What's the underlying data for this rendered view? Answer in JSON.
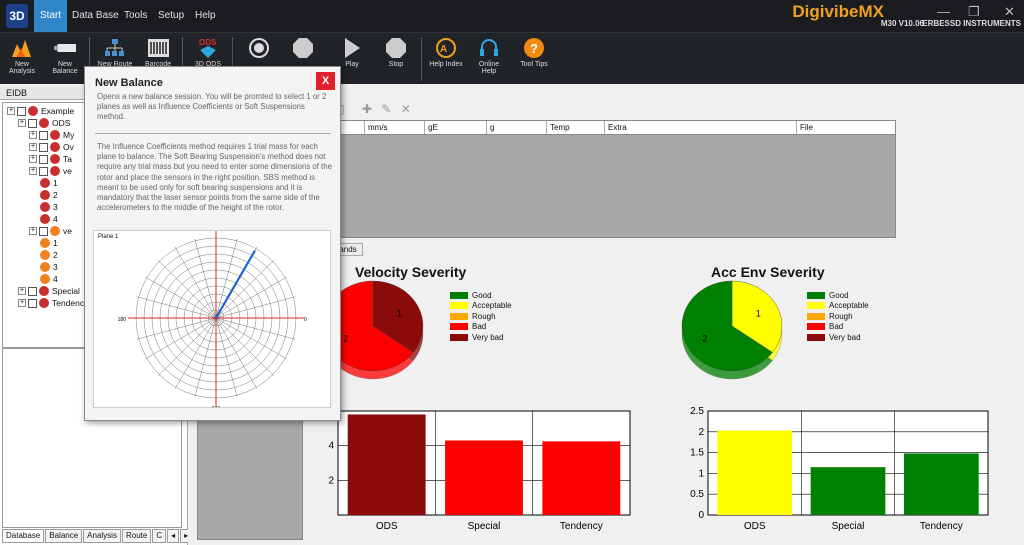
{
  "menu": {
    "logo": "3D",
    "items": [
      "Start",
      "Data Base",
      "Tools",
      "Setup",
      "Help"
    ],
    "brand": "DigivibeMX",
    "version": "M30 V10.06",
    "company": "ERBESSD INSTRUMENTS"
  },
  "ribbon": {
    "buttons": [
      {
        "label": "New\nAnalysis",
        "icon": "analysis-icon"
      },
      {
        "label": "New\nBalance",
        "icon": "balance-icon"
      },
      {
        "label": "New Route",
        "icon": "route-icon"
      },
      {
        "label": "Barcode",
        "icon": "barcode-icon"
      },
      {
        "label": "3D ODS",
        "icon": "ods-icon"
      },
      {
        "label": "",
        "icon": "target-icon"
      },
      {
        "label": "",
        "icon": "stop-shape-icon"
      },
      {
        "label": "Play",
        "icon": "play-icon"
      },
      {
        "label": "Stop",
        "icon": "stop-icon"
      },
      {
        "label": "Help Index",
        "icon": "help-index-icon"
      },
      {
        "label": "Online\nHelp",
        "icon": "headset-icon"
      },
      {
        "label": "Tool Tips",
        "icon": "question-icon"
      }
    ]
  },
  "left": {
    "header": "EIDB",
    "tree": [
      {
        "label": "Example",
        "level": 0
      },
      {
        "label": "ODS",
        "level": 1
      },
      {
        "label": "My",
        "level": 2
      },
      {
        "label": "Ov",
        "level": 2
      },
      {
        "label": "Ta",
        "level": 2
      },
      {
        "label": "ve",
        "level": 2
      },
      {
        "label": "1",
        "level": 3
      },
      {
        "label": "2",
        "level": 3
      },
      {
        "label": "3",
        "level": 3
      },
      {
        "label": "4",
        "level": 3
      },
      {
        "label": "ve",
        "level": 2
      },
      {
        "label": "1",
        "level": 3
      },
      {
        "label": "2",
        "level": 3
      },
      {
        "label": "3",
        "level": 3
      },
      {
        "label": "4",
        "level": 3
      },
      {
        "label": "Special",
        "level": 1
      },
      {
        "label": "Tendency",
        "level": 1
      }
    ],
    "tabs": [
      "Database",
      "Balance",
      "Analysis",
      "Route",
      "C"
    ]
  },
  "table": {
    "headers": [
      "mm/s",
      "gE",
      "g",
      "Temp",
      "Extra",
      "File"
    ]
  },
  "tab_label": "ands",
  "dialog": {
    "title": "New Balance",
    "close": "X",
    "para1": "Opens a new balance session. You will be promted to select 1 or 2 planes as well as Influence Coefficients or Soft Suspensions method.",
    "para2": "The Influence Coefficients method requires 1 trial mass for each plane to balance. The Soft Bearing Suspension's method does not require any trial mass but you need to enter some dimensions of the rotor and place the sensors in the right position. SBS method is meant to be used only for soft bearing suspensions and it is mandatory that the laser sensor points from the same side of the accelerometers to the middle of the height of the rotor.",
    "polar": {
      "title": "Plane 1",
      "angles": [
        "90",
        "0",
        "270",
        "180"
      ],
      "vectors": [
        {
          "angle_deg": 60,
          "magnitude": 0.95,
          "color": "#2060d0"
        }
      ]
    }
  },
  "velocity": {
    "title": "Velocity Severity",
    "pie": [
      {
        "label": "1",
        "fraction": 0.35,
        "color": "#8b0a0a"
      },
      {
        "label": "2",
        "fraction": 0.65,
        "color": "#ff0000"
      }
    ],
    "bars": {
      "categories": [
        "ODS",
        "Special",
        "Tendency"
      ],
      "values": [
        5.8,
        4.3,
        4.25
      ],
      "colors": [
        "#8b0a0a",
        "#ff0000",
        "#ff0000"
      ],
      "ylim": [
        0,
        6
      ],
      "ticks": [
        "2",
        "4"
      ]
    }
  },
  "acc": {
    "title": "Acc Env Severity",
    "pie": [
      {
        "label": "1",
        "fraction": 0.35,
        "color": "#ffff00"
      },
      {
        "label": "2",
        "fraction": 0.65,
        "color": "#008000"
      }
    ],
    "bars": {
      "categories": [
        "ODS",
        "Special",
        "Tendency"
      ],
      "values": [
        2.03,
        1.15,
        1.48
      ],
      "colors": [
        "#ffff00",
        "#008000",
        "#008000"
      ],
      "ylim": [
        0,
        2.5
      ],
      "ticks": [
        "0",
        "0.5",
        "1",
        "1.5",
        "2",
        "2.5"
      ]
    }
  },
  "legend": [
    {
      "label": "Good",
      "color": "#008000"
    },
    {
      "label": "Acceptable",
      "color": "#ffff00"
    },
    {
      "label": "Rough",
      "color": "#ffa500"
    },
    {
      "label": "Bad",
      "color": "#ff0000"
    },
    {
      "label": "Very bad",
      "color": "#8b0a0a"
    }
  ],
  "chart_data": [
    {
      "type": "pie",
      "title": "Velocity Severity",
      "categories": [
        "1",
        "2"
      ],
      "values": [
        35,
        65
      ]
    },
    {
      "type": "bar",
      "categories": [
        "ODS",
        "Special",
        "Tendency"
      ],
      "values": [
        5.8,
        4.3,
        4.25
      ],
      "ylim": [
        0,
        6
      ]
    },
    {
      "type": "pie",
      "title": "Acc Env Severity",
      "categories": [
        "1",
        "2"
      ],
      "values": [
        35,
        65
      ]
    },
    {
      "type": "bar",
      "categories": [
        "ODS",
        "Special",
        "Tendency"
      ],
      "values": [
        2.03,
        1.15,
        1.48
      ],
      "ylim": [
        0,
        2.5
      ]
    }
  ]
}
